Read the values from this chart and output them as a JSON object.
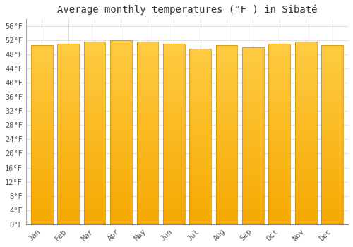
{
  "title": "Average monthly temperatures (°F ) in Sibaté",
  "months": [
    "Jan",
    "Feb",
    "Mar",
    "Apr",
    "May",
    "Jun",
    "Jul",
    "Aug",
    "Sep",
    "Oct",
    "Nov",
    "Dec"
  ],
  "values": [
    50.5,
    51.0,
    51.5,
    52.0,
    51.5,
    51.0,
    49.5,
    50.5,
    50.0,
    51.0,
    51.5,
    50.5
  ],
  "bar_color_top": "#FFCC44",
  "bar_color_bottom": "#F5A800",
  "bar_edge_color": "#CC8800",
  "background_color": "#FFFFFF",
  "grid_color": "#E0E0E0",
  "ylim": [
    0,
    58
  ],
  "yticks": [
    0,
    4,
    8,
    12,
    16,
    20,
    24,
    28,
    32,
    36,
    40,
    44,
    48,
    52,
    56
  ],
  "title_fontsize": 10,
  "tick_fontsize": 7.5,
  "font_family": "monospace"
}
